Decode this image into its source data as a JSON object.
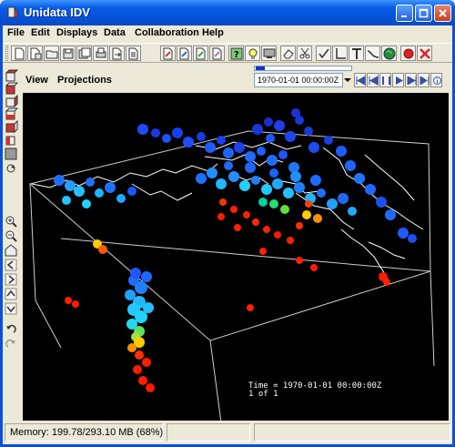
{
  "window": {
    "title": "Unidata IDV",
    "accent": "#0a50d8"
  },
  "menubar": {
    "items": [
      "File",
      "Edit",
      "Displays",
      "Data",
      "Collaboration",
      "Help"
    ]
  },
  "toolbar": {
    "icons": [
      "new-icon",
      "open-icon",
      "open-folder-icon",
      "save-icon",
      "save-bundle-icon",
      "print-icon",
      "export-icon",
      "data-chooser-icon",
      "field-selector-icon",
      "edit-text-icon",
      "formula-icon",
      "notes-icon",
      "help-icon",
      "tip-icon",
      "monitor-icon",
      "erase-icon",
      "scissors-icon",
      "checkmark-edit-icon",
      "axis-icon",
      "text-tool-icon",
      "wave-icon",
      "globe-icon",
      "record-icon",
      "remove-icon"
    ]
  },
  "view": {
    "menus": [
      "View",
      "Projections"
    ],
    "time_select": "1970-01-01 00:00:00Z",
    "time_progress": 0.1,
    "time_label_line1": "Time = 1970-01-01 00:00:00Z",
    "time_label_line2": "1 of 1"
  },
  "status": {
    "memory": "Memory: 199.78/293.10 MB (68%)"
  }
}
